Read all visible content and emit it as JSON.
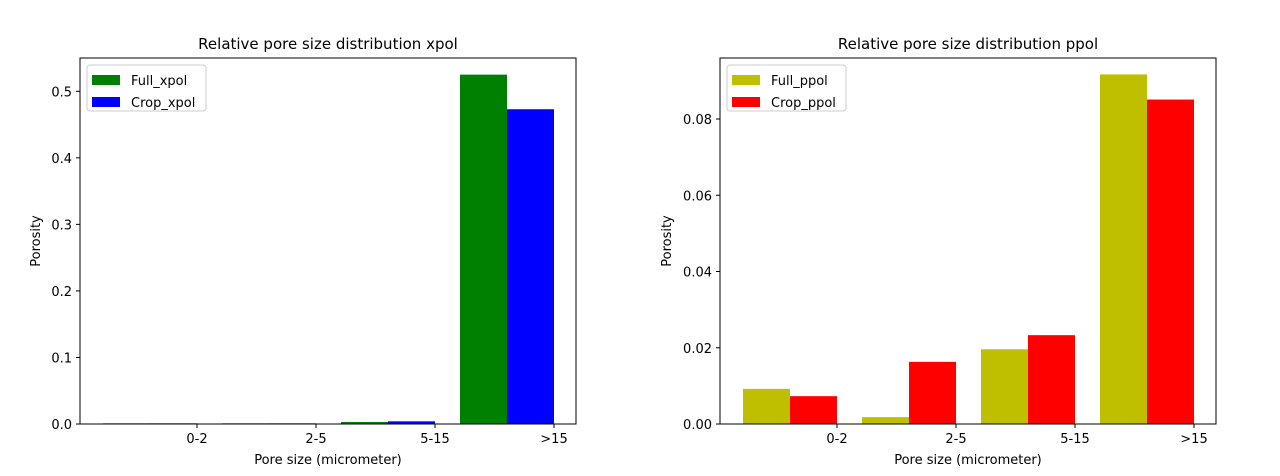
{
  "chart_data": [
    {
      "type": "bar",
      "title": "Relative pore size distribution xpol",
      "xlabel": "Pore size (micrometer)",
      "ylabel": "Porosity",
      "categories": [
        "0-2",
        "2-5",
        "5-15",
        ">15"
      ],
      "ylim": [
        0,
        0.55
      ],
      "yticks": [
        "0.0",
        "0.1",
        "0.2",
        "0.3",
        "0.4",
        "0.5"
      ],
      "legend_position": "top-left",
      "grid": false,
      "series": [
        {
          "name": "Full_xpol",
          "color": "#008000",
          "values": [
            0.001,
            0.001,
            0.003,
            0.525
          ]
        },
        {
          "name": "Crop_xpol",
          "color": "#0000ff",
          "values": [
            0.001,
            0.001,
            0.004,
            0.473
          ]
        }
      ]
    },
    {
      "type": "bar",
      "title": "Relative pore size distribution ppol",
      "xlabel": "Pore size (micrometer)",
      "ylabel": "Porosity",
      "categories": [
        "0-2",
        "2-5",
        "5-15",
        ">15"
      ],
      "ylim": [
        0,
        0.096
      ],
      "yticks": [
        "0.00",
        "0.02",
        "0.04",
        "0.06",
        "0.08"
      ],
      "legend_position": "top-left",
      "grid": false,
      "series": [
        {
          "name": "Full_ppol",
          "color": "#bfbf00",
          "values": [
            0.0092,
            0.0018,
            0.0196,
            0.0917
          ]
        },
        {
          "name": "Crop_ppol",
          "color": "#ff0000",
          "values": [
            0.0073,
            0.0163,
            0.0233,
            0.0851
          ]
        }
      ]
    }
  ]
}
